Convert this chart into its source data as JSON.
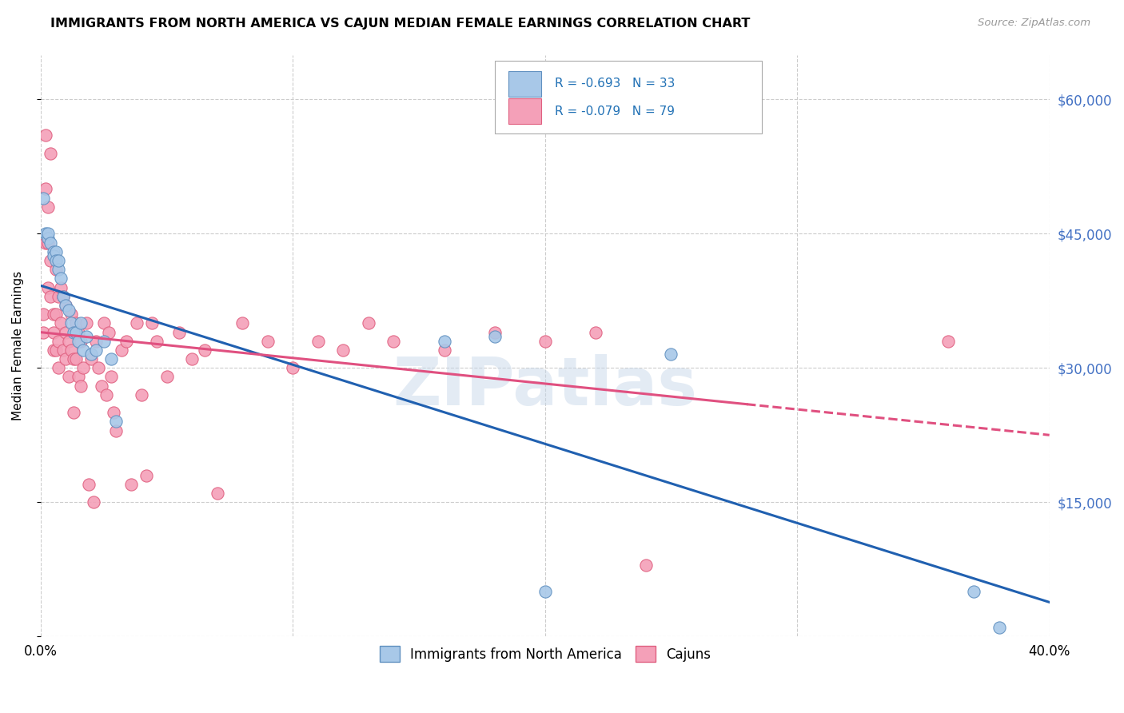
{
  "title": "IMMIGRANTS FROM NORTH AMERICA VS CAJUN MEDIAN FEMALE EARNINGS CORRELATION CHART",
  "source": "Source: ZipAtlas.com",
  "ylabel": "Median Female Earnings",
  "yticks": [
    0,
    15000,
    30000,
    45000,
    60000
  ],
  "ytick_labels": [
    "",
    "$15,000",
    "$30,000",
    "$45,000",
    "$60,000"
  ],
  "legend_r1": "R = -0.693",
  "legend_n1": "N = 33",
  "legend_r2": "R = -0.079",
  "legend_n2": "N = 79",
  "blue_fill": "#a8c8e8",
  "pink_fill": "#f4a0b8",
  "blue_edge": "#6090c0",
  "pink_edge": "#e06080",
  "blue_line": "#2060b0",
  "pink_line": "#e05080",
  "watermark": "ZIPatlas",
  "blue_scatter_x": [
    0.001,
    0.002,
    0.003,
    0.003,
    0.004,
    0.005,
    0.005,
    0.006,
    0.006,
    0.007,
    0.007,
    0.008,
    0.009,
    0.01,
    0.011,
    0.012,
    0.013,
    0.014,
    0.015,
    0.016,
    0.017,
    0.018,
    0.02,
    0.022,
    0.025,
    0.028,
    0.03,
    0.16,
    0.18,
    0.2,
    0.25,
    0.37,
    0.38
  ],
  "blue_scatter_y": [
    49000,
    45000,
    44500,
    45000,
    44000,
    43000,
    42500,
    43000,
    42000,
    41000,
    42000,
    40000,
    38000,
    37000,
    36500,
    35000,
    34000,
    34000,
    33000,
    35000,
    32000,
    33500,
    31500,
    32000,
    33000,
    31000,
    24000,
    33000,
    33500,
    5000,
    31500,
    5000,
    1000
  ],
  "pink_scatter_x": [
    0.001,
    0.001,
    0.002,
    0.002,
    0.002,
    0.003,
    0.003,
    0.003,
    0.004,
    0.004,
    0.004,
    0.005,
    0.005,
    0.005,
    0.006,
    0.006,
    0.006,
    0.007,
    0.007,
    0.007,
    0.008,
    0.008,
    0.009,
    0.009,
    0.01,
    0.01,
    0.01,
    0.011,
    0.011,
    0.012,
    0.012,
    0.013,
    0.013,
    0.014,
    0.014,
    0.015,
    0.015,
    0.016,
    0.016,
    0.017,
    0.018,
    0.019,
    0.02,
    0.021,
    0.022,
    0.023,
    0.024,
    0.025,
    0.026,
    0.027,
    0.028,
    0.029,
    0.03,
    0.032,
    0.034,
    0.036,
    0.038,
    0.04,
    0.042,
    0.044,
    0.046,
    0.05,
    0.055,
    0.06,
    0.065,
    0.07,
    0.08,
    0.09,
    0.1,
    0.11,
    0.12,
    0.13,
    0.14,
    0.16,
    0.18,
    0.2,
    0.22,
    0.24,
    0.36
  ],
  "pink_scatter_y": [
    36000,
    34000,
    56000,
    50000,
    44000,
    48000,
    44000,
    39000,
    54000,
    42000,
    38000,
    36000,
    34000,
    32000,
    41000,
    36000,
    32000,
    38000,
    33000,
    30000,
    39000,
    35000,
    38000,
    32000,
    37000,
    34000,
    31000,
    33000,
    29000,
    36000,
    32000,
    31000,
    25000,
    35000,
    31000,
    34000,
    29000,
    33000,
    28000,
    30000,
    35000,
    17000,
    31000,
    15000,
    33000,
    30000,
    28000,
    35000,
    27000,
    34000,
    29000,
    25000,
    23000,
    32000,
    33000,
    17000,
    35000,
    27000,
    18000,
    35000,
    33000,
    29000,
    34000,
    31000,
    32000,
    16000,
    35000,
    33000,
    30000,
    33000,
    32000,
    35000,
    33000,
    32000,
    34000,
    33000,
    34000,
    8000,
    33000
  ]
}
